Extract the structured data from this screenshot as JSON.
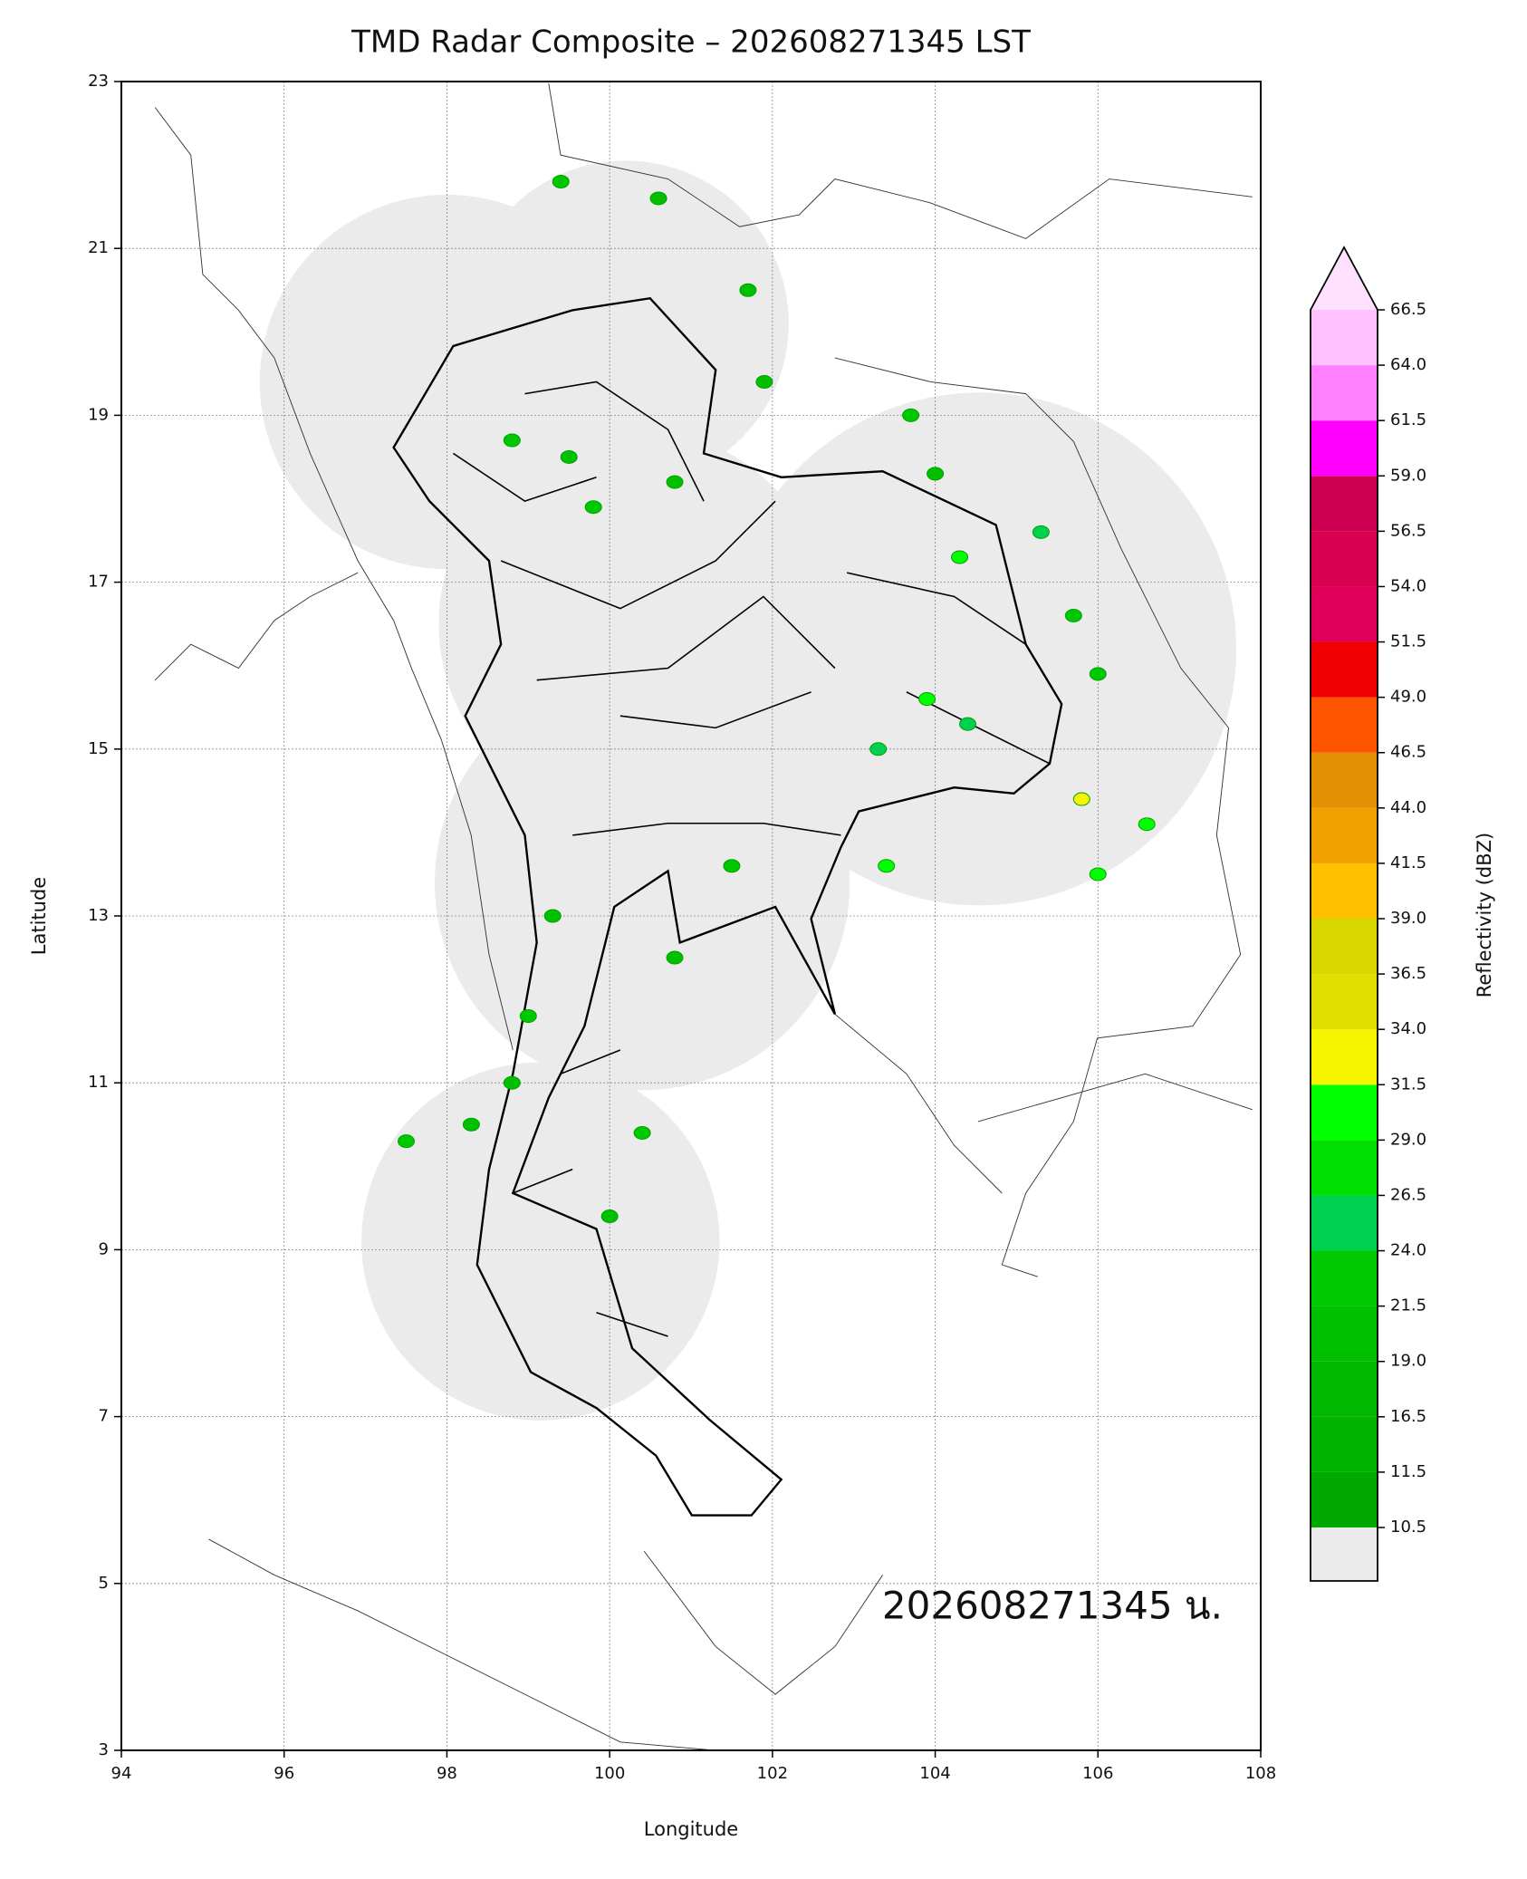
{
  "chart_data": {
    "type": "map",
    "title": "TMD Radar Composite – 202608271345 LST",
    "xlabel": "Longitude",
    "ylabel": "Latitude",
    "annotation": "202608271345 น.",
    "xlim": [
      94,
      108
    ],
    "ylim": [
      3,
      23
    ],
    "xticks": [
      94,
      96,
      98,
      100,
      102,
      104,
      106,
      108
    ],
    "yticks": [
      3,
      5,
      7,
      9,
      11,
      13,
      15,
      17,
      19,
      21,
      23
    ],
    "grid": true,
    "coverage_color": "#ebebeb",
    "radars": [
      {
        "lon": 98.0,
        "lat": 19.4,
        "radius": 2.3
      },
      {
        "lon": 100.2,
        "lat": 20.1,
        "radius": 2.0
      },
      {
        "lon": 100.3,
        "lat": 16.5,
        "radius": 2.4
      },
      {
        "lon": 100.4,
        "lat": 13.4,
        "radius": 2.55
      },
      {
        "lon": 104.55,
        "lat": 16.2,
        "radius": 3.15
      },
      {
        "lon": 99.15,
        "lat": 9.1,
        "radius": 2.2
      }
    ],
    "echoes": [
      {
        "lon": 99.4,
        "lat": 21.8,
        "value": 22
      },
      {
        "lon": 100.6,
        "lat": 21.6,
        "value": 20
      },
      {
        "lon": 101.7,
        "lat": 20.5,
        "value": 21
      },
      {
        "lon": 101.9,
        "lat": 19.4,
        "value": 19
      },
      {
        "lon": 98.8,
        "lat": 18.7,
        "value": 22
      },
      {
        "lon": 99.5,
        "lat": 18.5,
        "value": 21
      },
      {
        "lon": 99.8,
        "lat": 17.9,
        "value": 23
      },
      {
        "lon": 100.8,
        "lat": 18.2,
        "value": 20
      },
      {
        "lon": 103.7,
        "lat": 19.0,
        "value": 22
      },
      {
        "lon": 104.0,
        "lat": 18.3,
        "value": 21
      },
      {
        "lon": 104.3,
        "lat": 17.3,
        "value": 30
      },
      {
        "lon": 105.3,
        "lat": 17.6,
        "value": 24
      },
      {
        "lon": 105.7,
        "lat": 16.6,
        "value": 22
      },
      {
        "lon": 106.0,
        "lat": 15.9,
        "value": 23
      },
      {
        "lon": 103.9,
        "lat": 15.6,
        "value": 31
      },
      {
        "lon": 104.4,
        "lat": 15.3,
        "value": 26
      },
      {
        "lon": 103.3,
        "lat": 15.0,
        "value": 24
      },
      {
        "lon": 105.8,
        "lat": 14.4,
        "value": 33
      },
      {
        "lon": 106.6,
        "lat": 14.1,
        "value": 31
      },
      {
        "lon": 106.0,
        "lat": 13.5,
        "value": 30
      },
      {
        "lon": 103.4,
        "lat": 13.6,
        "value": 29
      },
      {
        "lon": 101.5,
        "lat": 13.6,
        "value": 23
      },
      {
        "lon": 99.3,
        "lat": 13.0,
        "value": 21
      },
      {
        "lon": 100.8,
        "lat": 12.5,
        "value": 20
      },
      {
        "lon": 99.0,
        "lat": 11.8,
        "value": 22
      },
      {
        "lon": 98.8,
        "lat": 11.0,
        "value": 20
      },
      {
        "lon": 98.3,
        "lat": 10.5,
        "value": 21
      },
      {
        "lon": 100.4,
        "lat": 10.4,
        "value": 22
      },
      {
        "lon": 100.0,
        "lat": 9.4,
        "value": 20
      },
      {
        "lon": 97.5,
        "lat": 10.3,
        "value": 23
      }
    ],
    "colorbar": {
      "label": "Reflectivity (dBZ)",
      "under_color": "#ebebeb",
      "over_color": "#ffe0ff",
      "ticks": [
        10.5,
        11.5,
        16.5,
        {
          "value": 19,
          "label": "19.0"
        },
        21.5,
        {
          "value": 24,
          "label": "24.0"
        },
        26.5,
        {
          "value": 29,
          "label": "29.0"
        },
        31.5,
        {
          "value": 34,
          "label": "34.0"
        },
        36.5,
        {
          "value": 39,
          "label": "39.0"
        },
        41.5,
        {
          "value": 44,
          "label": "44.0"
        },
        46.5,
        {
          "value": 49,
          "label": "49.0"
        },
        51.5,
        {
          "value": 54,
          "label": "54.0"
        },
        56.5,
        {
          "value": 59,
          "label": "59.0"
        },
        61.5,
        {
          "value": 64,
          "label": "64.0"
        },
        66.5
      ],
      "colors": [
        "#00a800",
        "#00b400",
        "#00b800",
        "#00c000",
        "#00c800",
        "#00d050",
        "#00e000",
        "#00ff00",
        "#f5f500",
        "#e0e000",
        "#d8d800",
        "#ffc000",
        "#f0a000",
        "#e09000",
        "#ff5500",
        "#f00000",
        "#e0005a",
        "#d8004f",
        "#cc0050",
        "#ff00ff",
        "#ff80ff",
        "#ffc0ff"
      ]
    }
  }
}
